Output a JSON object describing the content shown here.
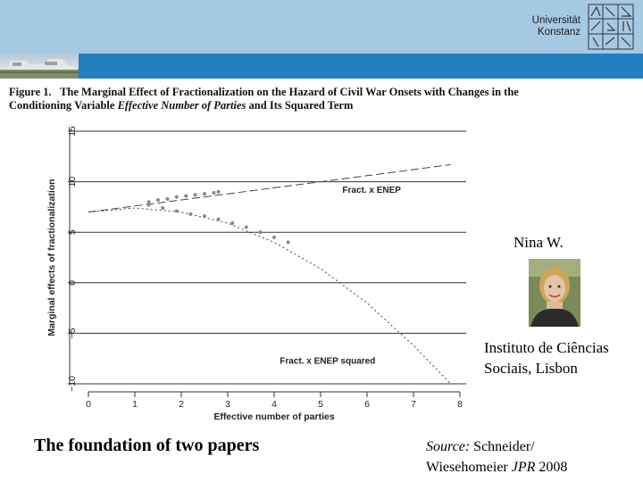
{
  "header": {
    "university_line1": "Universität",
    "university_line2": "Konstanz"
  },
  "figure": {
    "title_prefix": "Figure 1.",
    "title_part1": "The Marginal Effect of Fractionalization on the Hazard of Civil War Onsets with Changes in the Conditioning Variable",
    "title_variable": "Effective Number of Parties",
    "title_part2": "and Its Squared Term"
  },
  "chart_data": {
    "type": "line",
    "xlabel": "Effective number of parties",
    "ylabel": "Marginal effects of fractionalization",
    "xlim": [
      0,
      8
    ],
    "ylim": [
      -10,
      15
    ],
    "x_ticks": [
      0,
      1,
      2,
      3,
      4,
      5,
      6,
      7,
      8
    ],
    "y_ticks": [
      -10,
      -5,
      0,
      5,
      10,
      15
    ],
    "y_tick_labels": [
      "−10",
      "−5",
      "0",
      "5",
      "10",
      "15"
    ],
    "grid": "horizontal",
    "series": [
      {
        "name": "Fract. x ENEP",
        "style": "long-dash",
        "x": [
          0,
          1,
          2,
          3,
          4,
          5,
          6,
          7,
          7.8
        ],
        "y": [
          7.0,
          7.6,
          8.2,
          8.8,
          9.4,
          10.0,
          10.6,
          11.2,
          11.7
        ]
      },
      {
        "name": "Fract. x ENEP squared",
        "style": "dotted",
        "x": [
          0,
          1,
          2,
          3,
          4,
          5,
          6,
          7,
          7.8
        ],
        "y": [
          7.0,
          7.4,
          7.0,
          5.9,
          4.0,
          1.4,
          -2.0,
          -6.2,
          -10.0
        ]
      }
    ],
    "markers": [
      {
        "series": "Fract. x ENEP",
        "x": [
          1.3,
          1.5,
          1.7,
          1.9,
          2.1,
          2.3,
          2.5,
          2.7,
          2.8
        ],
        "y": [
          8.0,
          8.2,
          8.3,
          8.5,
          8.6,
          8.7,
          8.8,
          8.9,
          9.0
        ]
      },
      {
        "series": "Fract. x ENEP squared",
        "x": [
          1.3,
          1.6,
          1.9,
          2.2,
          2.5,
          2.8,
          3.1,
          3.4,
          3.7,
          4.0,
          4.3
        ],
        "y": [
          7.7,
          7.4,
          7.1,
          6.8,
          6.6,
          6.3,
          5.9,
          5.5,
          5.0,
          4.5,
          4.0
        ]
      }
    ]
  },
  "person": {
    "name": "Nina W.",
    "affiliation_line1": "Instituto de Ciências",
    "affiliation_line2": "Sociais, Lisbon"
  },
  "caption": "The foundation of two papers",
  "source": {
    "label": "Source:",
    "line1": "Schneider/",
    "line2": "Wiesehomeier",
    "journal": "JPR",
    "year": "2008"
  }
}
